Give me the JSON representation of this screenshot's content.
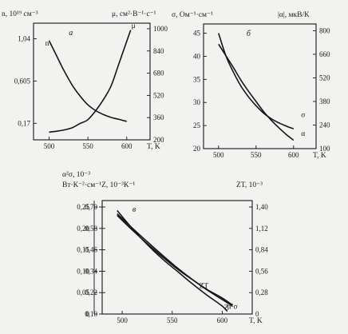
{
  "chart_data": [
    {
      "id": "a",
      "type": "line",
      "panel_label": "а",
      "x": {
        "label": "T, K",
        "ticks": [
          500,
          550,
          600
        ],
        "range": [
          480,
          630
        ]
      },
      "y_left": {
        "label": "n, 10¹⁹ см⁻³",
        "ticks": [
          "0,17",
          "0,605",
          "1,04"
        ],
        "tick_values": [
          0.17,
          0.605,
          1.04
        ],
        "range": [
          0.0,
          1.2
        ]
      },
      "y_right": {
        "label": "μ, см²·В⁻¹·с⁻¹",
        "ticks": [
          200,
          360,
          520,
          680,
          840,
          1000
        ],
        "range": [
          200,
          1040
        ]
      },
      "series": [
        {
          "name": "n",
          "axis": "left",
          "label_pos": [
            495,
            0.97
          ],
          "x": [
            500,
            510,
            520,
            530,
            540,
            550,
            560,
            570,
            580,
            590,
            600
          ],
          "y": [
            1.02,
            0.86,
            0.7,
            0.56,
            0.45,
            0.36,
            0.3,
            0.26,
            0.23,
            0.21,
            0.19
          ]
        },
        {
          "name": "μ",
          "axis": "right",
          "label_pos": [
            606,
            1005
          ],
          "x": [
            500,
            510,
            520,
            530,
            540,
            550,
            560,
            570,
            580,
            590,
            600,
            605
          ],
          "y": [
            255,
            262,
            272,
            288,
            318,
            345,
            410,
            490,
            590,
            750,
            910,
            990
          ]
        }
      ]
    },
    {
      "id": "b",
      "type": "line",
      "panel_label": "б",
      "x": {
        "label": "T, K",
        "ticks": [
          500,
          550,
          600
        ],
        "range": [
          480,
          630
        ]
      },
      "y_left": {
        "label": "σ, Ом⁻¹·см⁻¹",
        "ticks": [
          "20",
          "25",
          "30",
          "35",
          "40",
          "45"
        ],
        "tick_values": [
          20,
          25,
          30,
          35,
          40,
          45
        ],
        "range": [
          20,
          47
        ]
      },
      "y_right": {
        "label": "|α|, мкВ/К",
        "ticks": [
          100,
          240,
          380,
          520,
          660,
          800
        ],
        "range": [
          100,
          840
        ]
      },
      "series": [
        {
          "name": "σ",
          "axis": "left",
          "label_pos": [
            610,
            26.8
          ],
          "x": [
            500,
            510,
            520,
            530,
            540,
            550,
            560,
            570,
            580,
            590,
            600
          ],
          "y": [
            45,
            40,
            36.5,
            33.5,
            31.2,
            29.3,
            27.7,
            26.5,
            25.6,
            24.9,
            24.3
          ]
        },
        {
          "name": "α",
          "axis": "right",
          "label_pos": [
            610,
            175
          ],
          "x": [
            500,
            510,
            520,
            530,
            540,
            550,
            560,
            570,
            580,
            590,
            600
          ],
          "y": [
            720,
            650,
            580,
            505,
            440,
            380,
            320,
            270,
            225,
            185,
            150
          ]
        }
      ]
    },
    {
      "id": "c",
      "type": "line",
      "panel_label": "в",
      "x": {
        "label": "T, K",
        "ticks": [
          500,
          550,
          600
        ],
        "range": [
          480,
          630
        ]
      },
      "y_left": {
        "label": "α²σ, 10⁻³ Вт·К⁻²·см⁻¹",
        "ticks": [
          "0",
          "0,05",
          "0,10",
          "0,15",
          "0,20",
          "0,25"
        ],
        "tick_values": [
          0,
          0.05,
          0.1,
          0.15,
          0.2,
          0.25
        ],
        "range": [
          0,
          0.265
        ]
      },
      "y_inner": {
        "label": "Z, 10⁻³ К⁻¹",
        "ticks": [
          "0,10",
          "0,22",
          "0,34",
          "0,46",
          "0,58",
          "0,70"
        ],
        "tick_values": [
          0.1,
          0.22,
          0.34,
          0.46,
          0.58,
          0.7
        ],
        "range": [
          0.1,
          0.736
        ]
      },
      "y_right": {
        "label": "ZT, 10⁻³",
        "ticks": [
          "0",
          "0,28",
          "0,56",
          "0,84",
          "1,12",
          "1,40"
        ],
        "tick_values": [
          0,
          0.28,
          0.56,
          0.84,
          1.12,
          1.4
        ],
        "range": [
          0,
          1.484
        ]
      },
      "series": [
        {
          "name": "ZT",
          "axis": "right",
          "label_pos": [
            577,
            0.34
          ],
          "x": [
            495,
            510,
            525,
            540,
            555,
            570,
            585,
            600,
            610
          ],
          "y": [
            1.29,
            1.1,
            0.92,
            0.75,
            0.59,
            0.45,
            0.32,
            0.21,
            0.12
          ]
        },
        {
          "name": "α²σ",
          "axis": "left",
          "label_pos": [
            605,
            0.012
          ],
          "x": [
            495,
            510,
            525,
            540,
            555,
            570,
            585,
            600,
            610
          ],
          "y": [
            0.234,
            0.201,
            0.169,
            0.138,
            0.108,
            0.081,
            0.056,
            0.034,
            0.019
          ]
        },
        {
          "name": "Z",
          "axis": "inner",
          "label_pos": [
            602,
            0.125
          ],
          "x": [
            495,
            510,
            525,
            540,
            555,
            570,
            585,
            600,
            605
          ],
          "y": [
            0.68,
            0.58,
            0.49,
            0.41,
            0.34,
            0.27,
            0.205,
            0.145,
            0.115
          ]
        }
      ]
    }
  ]
}
